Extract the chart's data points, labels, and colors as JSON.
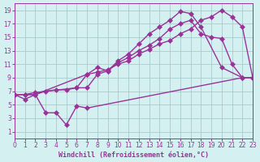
{
  "line1_x": [
    0,
    1,
    2,
    7,
    8,
    9,
    10,
    11,
    12,
    13,
    14,
    15,
    16,
    17,
    18,
    20,
    22,
    23
  ],
  "line1_y": [
    6.5,
    5.8,
    6.5,
    9.5,
    10.5,
    10.0,
    11.5,
    12.5,
    14.0,
    15.5,
    16.5,
    17.5,
    18.8,
    18.5,
    16.5,
    10.5,
    9.0,
    9.0
  ],
  "line2_x": [
    0,
    1,
    2,
    6,
    7,
    8,
    9,
    10,
    11,
    12,
    13,
    14,
    15,
    16,
    17,
    18,
    19,
    20,
    21,
    22,
    23
  ],
  "line2_y": [
    6.5,
    6.5,
    6.8,
    7.5,
    7.5,
    9.5,
    10.0,
    11.2,
    12.0,
    13.0,
    13.8,
    14.8,
    16.2,
    17.0,
    17.5,
    15.5,
    15.0,
    14.8,
    11.0,
    9.0,
    9.0
  ],
  "line3_x": [
    0,
    1,
    2,
    3,
    4,
    5,
    6,
    7,
    8,
    9,
    10,
    11,
    12,
    13,
    14,
    15,
    16,
    17,
    18,
    19,
    20,
    21,
    22,
    23
  ],
  "line3_y": [
    6.5,
    6.5,
    6.5,
    7.0,
    7.2,
    7.2,
    7.5,
    9.5,
    9.8,
    10.2,
    11.0,
    11.5,
    12.5,
    13.2,
    14.0,
    14.5,
    15.5,
    16.2,
    17.5,
    18.0,
    19.0,
    18.0,
    16.5,
    9.0
  ],
  "line4_x": [
    0,
    2,
    3,
    4,
    5,
    6,
    7,
    22,
    23
  ],
  "line4_y": [
    6.5,
    6.5,
    3.8,
    3.8,
    2.0,
    4.8,
    4.5,
    9.0,
    9.0
  ],
  "line_color": "#993399",
  "bg_color": "#d4f0f0",
  "grid_color": "#aacccc",
  "xlabel": "Windchill (Refroidissement éolien,°C)",
  "xlim": [
    0,
    23
  ],
  "ylim": [
    0,
    20
  ],
  "xticks": [
    0,
    1,
    2,
    3,
    4,
    5,
    6,
    7,
    8,
    9,
    10,
    11,
    12,
    13,
    14,
    15,
    16,
    17,
    18,
    19,
    20,
    21,
    22,
    23
  ],
  "yticks": [
    1,
    3,
    5,
    7,
    9,
    11,
    13,
    15,
    17,
    19
  ],
  "tick_color": "#993399",
  "markersize": 3,
  "linewidth": 1.0
}
